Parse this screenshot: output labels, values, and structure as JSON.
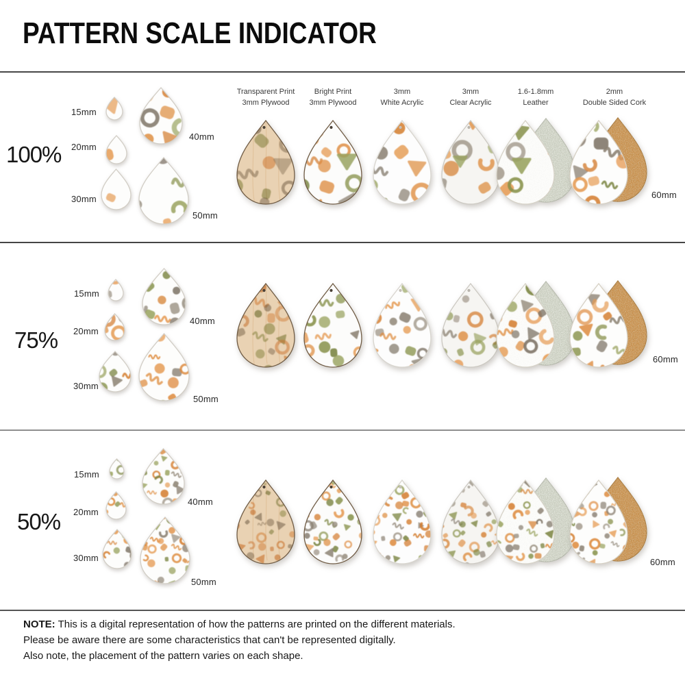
{
  "title": "PATTERN SCALE INDICATOR",
  "columns": [
    {
      "line1": "Transparent Print",
      "line2": "3mm Plywood"
    },
    {
      "line1": "Bright Print",
      "line2": "3mm Plywood"
    },
    {
      "line1": "3mm",
      "line2": "White Acrylic"
    },
    {
      "line1": "3mm",
      "line2": "Clear Acrylic"
    },
    {
      "line1": "1.6-1.8mm",
      "line2": "Leather"
    },
    {
      "line1": "2mm",
      "line2": "Double Sided Cork"
    }
  ],
  "rows": [
    {
      "scale_label": "100%",
      "scale": 1.0,
      "sizes": [
        "15mm",
        "20mm",
        "30mm",
        "40mm",
        "50mm",
        "60mm"
      ]
    },
    {
      "scale_label": "75%",
      "scale": 0.75,
      "sizes": [
        "15mm",
        "20mm",
        "30mm",
        "40mm",
        "50mm",
        "60mm"
      ]
    },
    {
      "scale_label": "50%",
      "scale": 0.5,
      "sizes": [
        "15mm",
        "20mm",
        "30mm",
        "40mm",
        "50mm",
        "60mm"
      ]
    }
  ],
  "note": {
    "label": "NOTE:",
    "lines": [
      "This is a digital representation of how the patterns are printed on the different materials.",
      "Please be aware there are some characteristics that can't be represented digitally.",
      "Also note, the placement of the pattern varies on each shape."
    ]
  },
  "pattern_colors": {
    "orange": [
      "#dd8a3c",
      "#e59a51",
      "#d47e30"
    ],
    "olive": [
      "#87914a",
      "#98a25e",
      "#79833f"
    ],
    "taupe": [
      "#8b8172",
      "#998f80",
      "#7d7365"
    ]
  },
  "material_colors": {
    "plywood_tan": "#e9d2b3",
    "print_white": "#fcfcfb",
    "acrylic_white": "#fdfdfd",
    "acrylic_clear": "#f6f5f2",
    "leather_back": "#c9cdbf",
    "cork_back": "#c78f4c"
  }
}
